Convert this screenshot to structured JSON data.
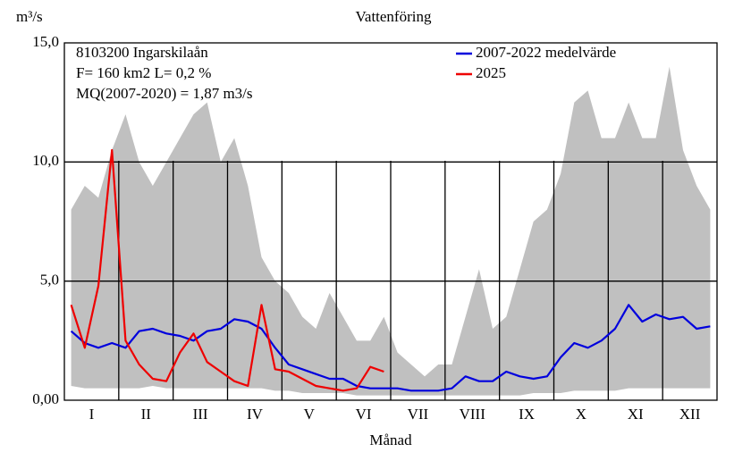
{
  "chart_data": {
    "type": "line",
    "title": "Vattenföring",
    "ylabel": "m³/s",
    "xlabel": "Månad",
    "annotations": [
      "8103200 Ingarskilaån",
      "F=    160 km2 L=  0,2 %",
      "MQ(2007-2020) = 1,87 m3/s"
    ],
    "xlim": [
      0,
      12
    ],
    "ylim": [
      0,
      15
    ],
    "yticks": [
      {
        "value": 0,
        "label": "0,00"
      },
      {
        "value": 5,
        "label": "5,0"
      },
      {
        "value": 10,
        "label": "10,0"
      },
      {
        "value": 15,
        "label": "15,0"
      }
    ],
    "xticks": [
      {
        "value": 0.5,
        "label": "I"
      },
      {
        "value": 1.5,
        "label": "II"
      },
      {
        "value": 2.5,
        "label": "III"
      },
      {
        "value": 3.5,
        "label": "IV"
      },
      {
        "value": 4.5,
        "label": "V"
      },
      {
        "value": 5.5,
        "label": "VI"
      },
      {
        "value": 6.5,
        "label": "VII"
      },
      {
        "value": 7.5,
        "label": "VIII"
      },
      {
        "value": 8.5,
        "label": "IX"
      },
      {
        "value": 9.5,
        "label": "X"
      },
      {
        "value": 10.5,
        "label": "XI"
      },
      {
        "value": 11.5,
        "label": "XII"
      }
    ],
    "grid": true,
    "x": [
      0.125,
      0.375,
      0.625,
      0.875,
      1.125,
      1.375,
      1.625,
      1.875,
      2.125,
      2.375,
      2.625,
      2.875,
      3.125,
      3.375,
      3.625,
      3.875,
      4.125,
      4.375,
      4.625,
      4.875,
      5.125,
      5.375,
      5.625,
      5.875,
      6.125,
      6.375,
      6.625,
      6.875,
      7.125,
      7.375,
      7.625,
      7.875,
      8.125,
      8.375,
      8.625,
      8.875,
      9.125,
      9.375,
      9.625,
      9.875,
      10.125,
      10.375,
      10.625,
      10.875,
      11.125,
      11.375,
      11.625,
      11.875
    ],
    "band": {
      "color": "#c0c0c0",
      "upper": [
        8.0,
        9.0,
        8.5,
        10.5,
        12.0,
        10.0,
        9.0,
        10.0,
        11.0,
        12.0,
        12.5,
        10.0,
        11.0,
        9.0,
        6.0,
        5.0,
        4.5,
        3.5,
        3.0,
        4.5,
        3.5,
        2.5,
        2.5,
        3.5,
        2.0,
        1.5,
        1.0,
        1.5,
        1.5,
        3.5,
        5.5,
        3.0,
        3.5,
        5.5,
        7.5,
        8.0,
        9.5,
        12.5,
        13.0,
        11.0,
        11.0,
        12.5,
        11.0,
        11.0,
        14.0,
        10.5,
        9.0,
        8.0
      ],
      "lower": [
        0.6,
        0.5,
        0.5,
        0.5,
        0.5,
        0.5,
        0.6,
        0.5,
        0.5,
        0.5,
        0.5,
        0.5,
        0.5,
        0.5,
        0.5,
        0.4,
        0.4,
        0.3,
        0.3,
        0.3,
        0.3,
        0.2,
        0.2,
        0.2,
        0.2,
        0.2,
        0.2,
        0.2,
        0.2,
        0.2,
        0.2,
        0.2,
        0.2,
        0.2,
        0.3,
        0.3,
        0.3,
        0.4,
        0.4,
        0.4,
        0.4,
        0.5,
        0.5,
        0.5,
        0.5,
        0.5,
        0.5,
        0.5
      ]
    },
    "series": [
      {
        "name": "2007-2022 medelvärde",
        "color": "#0000dd",
        "values": [
          2.9,
          2.4,
          2.2,
          2.4,
          2.2,
          2.9,
          3.0,
          2.8,
          2.7,
          2.5,
          2.9,
          3.0,
          3.4,
          3.3,
          3.0,
          2.2,
          1.5,
          1.3,
          1.1,
          0.9,
          0.9,
          0.6,
          0.5,
          0.5,
          0.5,
          0.4,
          0.4,
          0.4,
          0.5,
          1.0,
          0.8,
          0.8,
          1.2,
          1.0,
          0.9,
          1.0,
          1.8,
          2.4,
          2.2,
          2.5,
          3.0,
          4.0,
          3.3,
          3.6,
          3.4,
          3.5,
          3.0,
          3.1
        ]
      },
      {
        "name": "2025",
        "color": "#ee0000",
        "values": [
          4.0,
          2.2,
          4.8,
          10.5,
          2.5,
          1.5,
          0.9,
          0.8,
          2.0,
          2.8,
          1.6,
          1.2,
          0.8,
          0.6,
          4.0,
          1.3,
          1.2,
          0.9,
          0.6,
          0.5,
          0.4,
          0.5,
          1.4,
          1.2,
          null,
          null,
          null,
          null,
          null,
          null,
          null,
          null,
          null,
          null,
          null,
          null,
          null,
          null,
          null,
          null,
          null,
          null,
          null,
          null,
          null,
          null,
          null,
          null
        ]
      }
    ]
  }
}
